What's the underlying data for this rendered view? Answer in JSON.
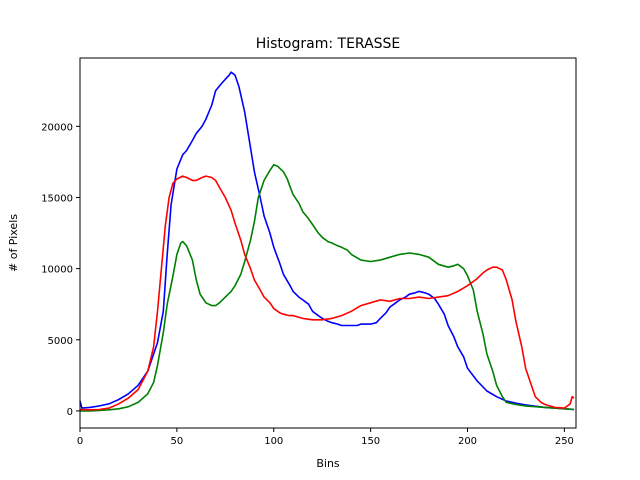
{
  "chart_data": {
    "type": "line",
    "title": "Histogram: TERASSE",
    "xlabel": "Bins",
    "ylabel": "# of Pixels",
    "xlim": [
      0,
      256
    ],
    "ylim": [
      -1200,
      24800
    ],
    "xticks": [
      0,
      50,
      100,
      150,
      200,
      250
    ],
    "yticks": [
      0,
      5000,
      10000,
      15000,
      20000
    ],
    "xtick_labels": [
      "0",
      "50",
      "100",
      "150",
      "200",
      "250"
    ],
    "ytick_labels": [
      "0",
      "5000",
      "10000",
      "15000",
      "20000"
    ],
    "grid": false,
    "legend": "none",
    "series": [
      {
        "color": "#0000ff",
        "x": [
          0,
          1,
          5,
          10,
          15,
          20,
          25,
          30,
          35,
          40,
          43,
          45,
          47,
          50,
          53,
          55,
          58,
          60,
          63,
          65,
          68,
          70,
          73,
          75,
          77,
          78,
          80,
          82,
          85,
          88,
          90,
          93,
          95,
          98,
          100,
          103,
          105,
          108,
          110,
          113,
          115,
          118,
          120,
          123,
          125,
          128,
          130,
          133,
          135,
          138,
          140,
          143,
          145,
          148,
          150,
          153,
          155,
          158,
          160,
          163,
          165,
          168,
          170,
          173,
          175,
          178,
          180,
          183,
          185,
          188,
          190,
          193,
          195,
          198,
          200,
          205,
          210,
          215,
          220,
          225,
          230,
          235,
          240,
          245,
          250,
          253,
          255
        ],
        "y": [
          700,
          200,
          250,
          350,
          500,
          800,
          1200,
          1800,
          2800,
          4800,
          7000,
          11000,
          14500,
          17000,
          18000,
          18300,
          19000,
          19500,
          20000,
          20500,
          21500,
          22500,
          23000,
          23300,
          23600,
          23800,
          23600,
          22800,
          21000,
          18500,
          16800,
          15000,
          13700,
          12500,
          11500,
          10400,
          9600,
          8900,
          8400,
          8000,
          7800,
          7500,
          7000,
          6700,
          6500,
          6300,
          6200,
          6100,
          6000,
          6000,
          6000,
          6000,
          6100,
          6100,
          6100,
          6200,
          6500,
          6900,
          7300,
          7600,
          7800,
          8000,
          8200,
          8300,
          8400,
          8300,
          8200,
          7900,
          7500,
          6800,
          6000,
          5200,
          4500,
          3800,
          3000,
          2100,
          1400,
          1000,
          700,
          550,
          420,
          330,
          250,
          200,
          150,
          120,
          100
        ]
      },
      {
        "color": "#008000",
        "x": [
          0,
          5,
          10,
          15,
          20,
          25,
          30,
          35,
          38,
          40,
          43,
          45,
          48,
          50,
          52,
          53,
          55,
          58,
          60,
          62,
          65,
          68,
          70,
          72,
          75,
          78,
          80,
          83,
          85,
          88,
          90,
          92,
          95,
          98,
          100,
          102,
          105,
          107,
          108,
          110,
          113,
          115,
          118,
          120,
          123,
          125,
          128,
          130,
          133,
          135,
          138,
          140,
          145,
          150,
          155,
          160,
          165,
          170,
          175,
          180,
          185,
          190,
          193,
          195,
          198,
          200,
          203,
          205,
          208,
          210,
          213,
          215,
          218,
          220,
          225,
          230,
          235,
          240,
          245,
          250,
          253,
          255
        ],
        "y": [
          0,
          0,
          30,
          80,
          150,
          300,
          600,
          1200,
          2000,
          3200,
          5500,
          7500,
          9500,
          11000,
          11800,
          11900,
          11600,
          10600,
          9200,
          8200,
          7600,
          7400,
          7400,
          7600,
          8000,
          8400,
          8800,
          9600,
          10500,
          12000,
          13300,
          15000,
          16200,
          16900,
          17300,
          17200,
          16800,
          16300,
          15900,
          15200,
          14600,
          14000,
          13500,
          13100,
          12500,
          12200,
          11900,
          11800,
          11600,
          11500,
          11300,
          11000,
          10600,
          10500,
          10600,
          10800,
          11000,
          11100,
          11000,
          10800,
          10300,
          10100,
          10200,
          10300,
          10000,
          9500,
          8500,
          7000,
          5400,
          4000,
          2800,
          1800,
          1000,
          600,
          450,
          350,
          300,
          250,
          200,
          150,
          120,
          100
        ]
      },
      {
        "color": "#ff0000",
        "x": [
          0,
          5,
          10,
          15,
          20,
          25,
          30,
          35,
          38,
          40,
          42,
          44,
          46,
          48,
          50,
          53,
          55,
          58,
          60,
          63,
          65,
          68,
          70,
          72,
          75,
          78,
          80,
          83,
          85,
          88,
          90,
          93,
          95,
          98,
          100,
          103,
          105,
          108,
          110,
          115,
          120,
          125,
          130,
          135,
          140,
          145,
          150,
          155,
          160,
          165,
          170,
          175,
          180,
          185,
          190,
          195,
          200,
          205,
          208,
          210,
          213,
          215,
          218,
          220,
          223,
          225,
          228,
          230,
          233,
          235,
          238,
          240,
          245,
          250,
          253,
          254,
          255
        ],
        "y": [
          100,
          80,
          100,
          200,
          500,
          900,
          1500,
          2800,
          4500,
          7000,
          10000,
          13000,
          15000,
          16000,
          16300,
          16500,
          16400,
          16200,
          16200,
          16400,
          16500,
          16400,
          16200,
          15700,
          15000,
          14100,
          13200,
          12000,
          11000,
          10000,
          9200,
          8500,
          8000,
          7600,
          7200,
          6900,
          6800,
          6700,
          6700,
          6500,
          6400,
          6400,
          6500,
          6700,
          7000,
          7400,
          7600,
          7800,
          7700,
          7900,
          7900,
          8000,
          7900,
          8000,
          8100,
          8400,
          8800,
          9300,
          9700,
          9900,
          10100,
          10100,
          9900,
          9200,
          7800,
          6300,
          4500,
          3000,
          1800,
          1000,
          600,
          450,
          250,
          200,
          500,
          1000,
          900
        ]
      }
    ]
  }
}
